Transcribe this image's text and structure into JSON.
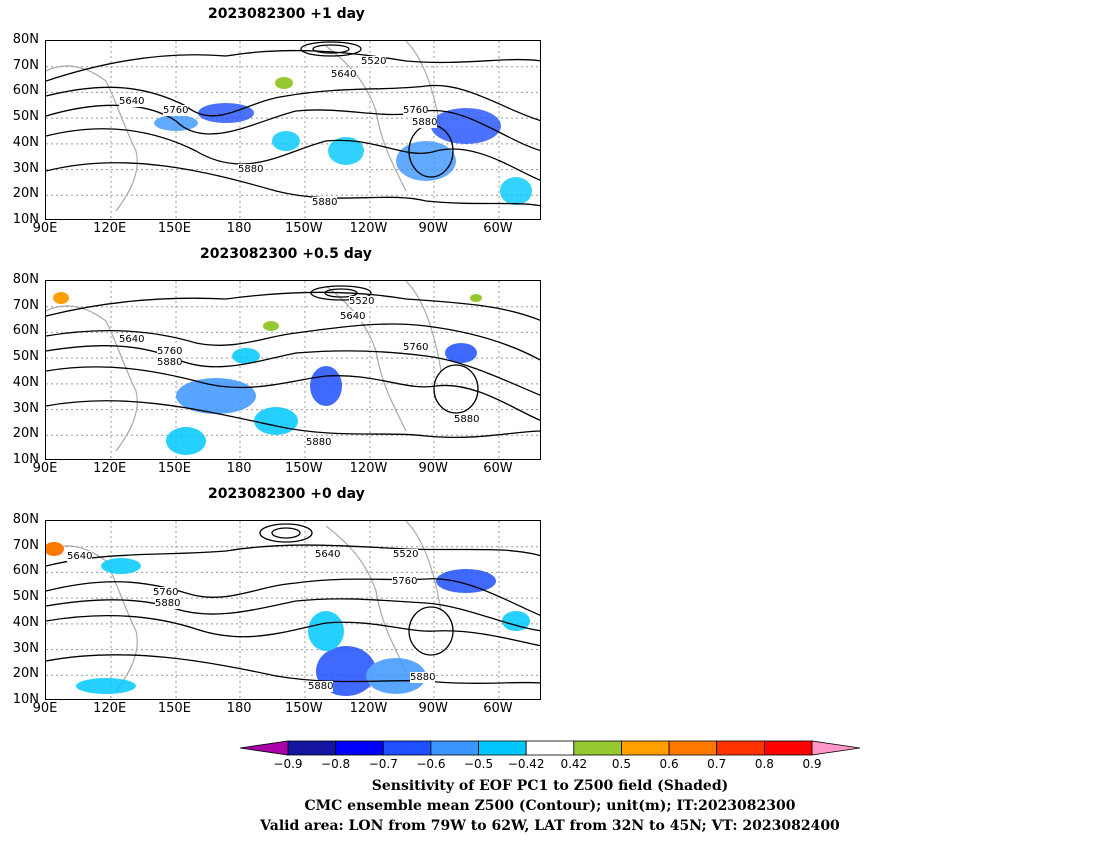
{
  "panels": [
    {
      "title": "2023082300  +1 day"
    },
    {
      "title": "2023082300  +0.5 day"
    },
    {
      "title": "2023082300  +0 day"
    }
  ],
  "lat_ticks": [
    "80N",
    "70N",
    "60N",
    "50N",
    "40N",
    "30N",
    "20N",
    "10N"
  ],
  "lon_ticks": [
    "90E",
    "120E",
    "150E",
    "180",
    "150W",
    "120W",
    "90W",
    "60W"
  ],
  "contour_labels": {
    "p0": [
      "5520",
      "5640",
      "5640",
      "5760",
      "5760",
      "5880",
      "5880",
      "5880"
    ],
    "p1": [
      "5520",
      "5640",
      "5640",
      "5760",
      "5880",
      "5760",
      "5880",
      "5880"
    ],
    "p2": [
      "5640",
      "5640",
      "5520",
      "5760",
      "5880",
      "5760",
      "5880",
      "5880"
    ]
  },
  "colorbar": {
    "ticks": [
      "−0.9",
      "−0.8",
      "−0.7",
      "−0.6",
      "−0.5",
      "−0.42",
      "0.42",
      "0.5",
      "0.6",
      "0.7",
      "0.8",
      "0.9"
    ],
    "colors": [
      "#aa00aa",
      "#1414a0",
      "#0000ff",
      "#1e50ff",
      "#3c96ff",
      "#00c8ff",
      "#ffffff",
      "#96c832",
      "#ffa000",
      "#ff7800",
      "#ff3200",
      "#ff0000",
      "#ff96c8"
    ]
  },
  "captions": [
    "Sensitivity of EOF PC1 to Z500 field (Shaded)",
    "CMC ensemble mean Z500 (Contour); unit(m); IT:2023082300",
    "Valid area: LON from 79W to 62W, LAT from 32N to 45N; VT: 2023082400"
  ]
}
